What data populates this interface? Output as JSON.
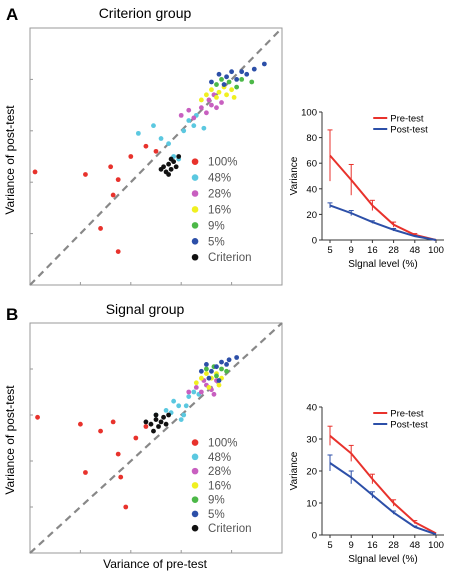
{
  "chart_data": [
    {
      "panel_label": "A",
      "type": "scatter",
      "title": "Criterion group",
      "xlabel": "",
      "ylabel": "Variance of post-test",
      "xlim": [
        0,
        1
      ],
      "ylim": [
        0,
        1
      ],
      "reference_line": "identity (dashed)",
      "legend": {
        "placement": "bottom-right",
        "entries": [
          "100%",
          "48%",
          "28%",
          "16%",
          "9%",
          "5%",
          "Criterion"
        ],
        "colors": [
          "#e8322c",
          "#5bc8e0",
          "#c85fc0",
          "#f0f020",
          "#4cb848",
          "#2c4fa8",
          "#111111"
        ]
      },
      "series": [
        {
          "key": "100%",
          "color": "#e8322c",
          "points": [
            [
              0.02,
              0.44
            ],
            [
              0.22,
              0.43
            ],
            [
              0.32,
              0.46
            ],
            [
              0.35,
              0.41
            ],
            [
              0.33,
              0.35
            ],
            [
              0.28,
              0.22
            ],
            [
              0.35,
              0.13
            ],
            [
              0.4,
              0.5
            ],
            [
              0.46,
              0.54
            ],
            [
              0.5,
              0.52
            ]
          ]
        },
        {
          "key": "48%",
          "color": "#5bc8e0",
          "points": [
            [
              0.43,
              0.59
            ],
            [
              0.49,
              0.62
            ],
            [
              0.52,
              0.57
            ],
            [
              0.55,
              0.55
            ],
            [
              0.57,
              0.5
            ],
            [
              0.59,
              0.49
            ],
            [
              0.61,
              0.6
            ],
            [
              0.63,
              0.64
            ],
            [
              0.66,
              0.66
            ],
            [
              0.65,
              0.62
            ],
            [
              0.69,
              0.61
            ]
          ]
        },
        {
          "key": "28%",
          "color": "#c85fc0",
          "points": [
            [
              0.6,
              0.66
            ],
            [
              0.63,
              0.68
            ],
            [
              0.65,
              0.65
            ],
            [
              0.68,
              0.69
            ],
            [
              0.7,
              0.67
            ],
            [
              0.71,
              0.72
            ],
            [
              0.72,
              0.7
            ],
            [
              0.74,
              0.69
            ],
            [
              0.76,
              0.71
            ],
            [
              0.73,
              0.74
            ]
          ]
        },
        {
          "key": "16%",
          "color": "#f0f020",
          "points": [
            [
              0.68,
              0.72
            ],
            [
              0.7,
              0.74
            ],
            [
              0.72,
              0.76
            ],
            [
              0.74,
              0.73
            ],
            [
              0.75,
              0.75
            ],
            [
              0.77,
              0.77
            ],
            [
              0.78,
              0.74
            ],
            [
              0.8,
              0.76
            ],
            [
              0.81,
              0.73
            ]
          ]
        },
        {
          "key": "9%",
          "color": "#4cb848",
          "points": [
            [
              0.74,
              0.78
            ],
            [
              0.76,
              0.8
            ],
            [
              0.79,
              0.79
            ],
            [
              0.82,
              0.77
            ],
            [
              0.84,
              0.8
            ],
            [
              0.88,
              0.79
            ]
          ]
        },
        {
          "key": "5%",
          "color": "#2c4fa8",
          "points": [
            [
              0.72,
              0.79
            ],
            [
              0.75,
              0.82
            ],
            [
              0.78,
              0.81
            ],
            [
              0.8,
              0.83
            ],
            [
              0.82,
              0.8
            ],
            [
              0.84,
              0.83
            ],
            [
              0.86,
              0.82
            ],
            [
              0.89,
              0.84
            ],
            [
              0.93,
              0.86
            ],
            [
              0.77,
              0.78
            ]
          ]
        },
        {
          "key": "Criterion",
          "color": "#111111",
          "points": [
            [
              0.53,
              0.46
            ],
            [
              0.55,
              0.47
            ],
            [
              0.56,
              0.45
            ],
            [
              0.54,
              0.44
            ],
            [
              0.57,
              0.48
            ],
            [
              0.58,
              0.46
            ],
            [
              0.55,
              0.43
            ],
            [
              0.59,
              0.5
            ],
            [
              0.56,
              0.49
            ],
            [
              0.52,
              0.45
            ]
          ]
        }
      ]
    },
    {
      "panel_label": "",
      "type": "line",
      "title": "",
      "xlabel": "Slgnal level (%)",
      "ylabel": "Variance",
      "categories": [
        "5",
        "9",
        "16",
        "28",
        "48",
        "100"
      ],
      "ylim": [
        0,
        100
      ],
      "yticks": [
        0,
        20,
        40,
        60,
        80,
        100
      ],
      "legend": {
        "placement": "top-right",
        "entries": [
          "Pre-test",
          "Post-test"
        ]
      },
      "series": [
        {
          "name": "Pre-test",
          "color": "#e8322c",
          "values": [
            66,
            47,
            27,
            12,
            4,
            0
          ],
          "errors": [
            20,
            12,
            4,
            2,
            1,
            0
          ]
        },
        {
          "name": "Post-test",
          "color": "#2c4fa8",
          "values": [
            27,
            21,
            14,
            8,
            3,
            0
          ],
          "errors": [
            2,
            2,
            1,
            1,
            0.5,
            0
          ]
        }
      ]
    },
    {
      "panel_label": "B",
      "type": "scatter",
      "title": "Signal group",
      "xlabel": "Variance of pre-test",
      "ylabel": "Variance of post-test",
      "xlim": [
        0,
        1
      ],
      "ylim": [
        0,
        1
      ],
      "reference_line": "identity (dashed)",
      "legend": {
        "placement": "bottom-right",
        "entries": [
          "100%",
          "48%",
          "28%",
          "16%",
          "9%",
          "5%",
          "Criterion"
        ],
        "colors": [
          "#e8322c",
          "#5bc8e0",
          "#c85fc0",
          "#f0f020",
          "#4cb848",
          "#2c4fa8",
          "#111111"
        ]
      },
      "series": [
        {
          "key": "100%",
          "color": "#e8322c",
          "points": [
            [
              0.03,
              0.59
            ],
            [
              0.2,
              0.56
            ],
            [
              0.33,
              0.57
            ],
            [
              0.28,
              0.53
            ],
            [
              0.35,
              0.43
            ],
            [
              0.36,
              0.33
            ],
            [
              0.38,
              0.2
            ],
            [
              0.22,
              0.35
            ],
            [
              0.42,
              0.5
            ],
            [
              0.46,
              0.55
            ]
          ]
        },
        {
          "key": "48%",
          "color": "#5bc8e0",
          "points": [
            [
              0.5,
              0.6
            ],
            [
              0.54,
              0.62
            ],
            [
              0.57,
              0.66
            ],
            [
              0.59,
              0.64
            ],
            [
              0.61,
              0.6
            ],
            [
              0.6,
              0.58
            ],
            [
              0.63,
              0.68
            ],
            [
              0.65,
              0.7
            ],
            [
              0.67,
              0.69
            ],
            [
              0.62,
              0.64
            ],
            [
              0.56,
              0.61
            ]
          ]
        },
        {
          "key": "28%",
          "color": "#c85fc0",
          "points": [
            [
              0.63,
              0.7
            ],
            [
              0.66,
              0.72
            ],
            [
              0.68,
              0.7
            ],
            [
              0.7,
              0.73
            ],
            [
              0.72,
              0.71
            ],
            [
              0.74,
              0.75
            ],
            [
              0.69,
              0.75
            ],
            [
              0.73,
              0.69
            ]
          ]
        },
        {
          "key": "16%",
          "color": "#f0f020",
          "points": [
            [
              0.66,
              0.74
            ],
            [
              0.68,
              0.76
            ],
            [
              0.7,
              0.78
            ],
            [
              0.72,
              0.76
            ],
            [
              0.74,
              0.78
            ],
            [
              0.76,
              0.76
            ],
            [
              0.71,
              0.72
            ],
            [
              0.75,
              0.73
            ]
          ]
        },
        {
          "key": "9%",
          "color": "#4cb848",
          "points": [
            [
              0.7,
              0.8
            ],
            [
              0.73,
              0.81
            ],
            [
              0.76,
              0.8
            ],
            [
              0.78,
              0.79
            ],
            [
              0.74,
              0.77
            ]
          ]
        },
        {
          "key": "5%",
          "color": "#2c4fa8",
          "points": [
            [
              0.68,
              0.79
            ],
            [
              0.7,
              0.82
            ],
            [
              0.72,
              0.79
            ],
            [
              0.74,
              0.81
            ],
            [
              0.76,
              0.83
            ],
            [
              0.78,
              0.82
            ],
            [
              0.79,
              0.84
            ],
            [
              0.82,
              0.85
            ],
            [
              0.71,
              0.76
            ],
            [
              0.75,
              0.75
            ]
          ]
        },
        {
          "key": "Criterion",
          "color": "#111111",
          "points": [
            [
              0.48,
              0.56
            ],
            [
              0.5,
              0.58
            ],
            [
              0.52,
              0.57
            ],
            [
              0.51,
              0.55
            ],
            [
              0.53,
              0.59
            ],
            [
              0.54,
              0.56
            ],
            [
              0.5,
              0.6
            ],
            [
              0.46,
              0.57
            ],
            [
              0.49,
              0.53
            ],
            [
              0.55,
              0.6
            ]
          ]
        }
      ]
    },
    {
      "panel_label": "",
      "type": "line",
      "title": "",
      "xlabel": "Slgnal level (%)",
      "ylabel": "Variance",
      "categories": [
        "5",
        "9",
        "16",
        "28",
        "48",
        "100"
      ],
      "ylim": [
        0,
        40
      ],
      "yticks": [
        0,
        10,
        20,
        30,
        40
      ],
      "legend": {
        "placement": "top-right",
        "entries": [
          "Pre-test",
          "Post-test"
        ]
      },
      "series": [
        {
          "name": "Pre-test",
          "color": "#e8322c",
          "values": [
            31,
            25.5,
            17.5,
            10,
            4,
            0.5
          ],
          "errors": [
            3,
            2.5,
            1.5,
            1,
            0.5,
            0
          ]
        },
        {
          "name": "Post-test",
          "color": "#2c4fa8",
          "values": [
            22.5,
            18,
            12.5,
            7,
            2.5,
            0.2
          ],
          "errors": [
            2.5,
            2,
            1,
            0.5,
            0.3,
            0
          ]
        }
      ]
    }
  ]
}
